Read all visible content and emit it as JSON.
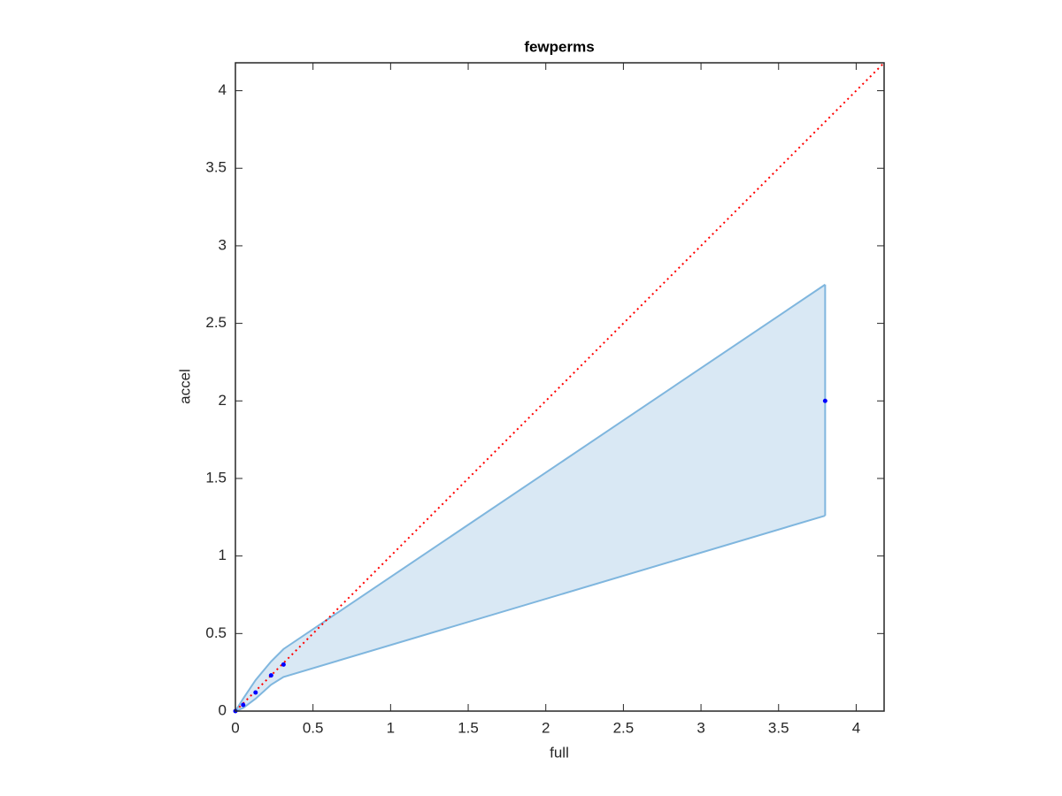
{
  "chart_data": {
    "type": "scatter",
    "title": "fewperms",
    "x_label": "full",
    "y_label": "accel",
    "x": [
      0,
      0.05,
      0.13,
      0.23,
      0.31,
      3.8
    ],
    "series": [
      {
        "color": "#0000ff",
        "values": [
          0,
          0.04,
          0.12,
          0.23,
          0.3,
          2.0
        ]
      }
    ],
    "band": {
      "color": "#7fb6de",
      "fill": "#d9e8f4",
      "x": [
        0,
        0.05,
        0.13,
        0.23,
        0.31,
        3.8
      ],
      "upper": [
        0,
        0.08,
        0.2,
        0.32,
        0.4,
        2.75
      ],
      "lower": [
        0,
        0.02,
        0.08,
        0.17,
        0.22,
        1.26
      ]
    },
    "reference_line": {
      "color": "#ff0000",
      "x": [
        0,
        4.18
      ],
      "values": [
        0,
        4.18
      ]
    },
    "xlim": [
      0,
      4.18
    ],
    "ylim": [
      0,
      4.18
    ],
    "xticks": [
      0,
      0.5,
      1,
      1.5,
      2,
      2.5,
      3,
      3.5,
      4
    ],
    "yticks": [
      0,
      0.5,
      1,
      1.5,
      2,
      2.5,
      3,
      3.5,
      4
    ],
    "grid": false
  }
}
